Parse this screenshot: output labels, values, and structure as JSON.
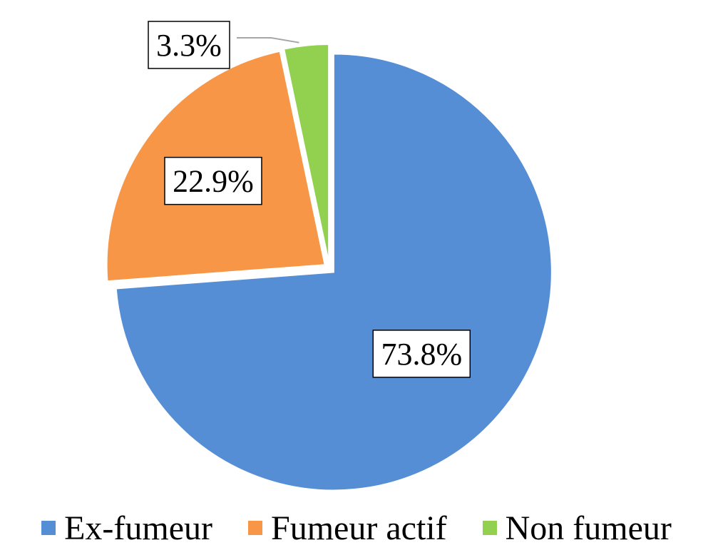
{
  "chart_data": {
    "type": "pie",
    "title": "",
    "categories": [
      "Ex-fumeur",
      "Fumeur actif",
      "Non fumeur"
    ],
    "values": [
      73.8,
      22.9,
      3.3
    ],
    "labels": [
      "73.8%",
      "22.9%",
      "3.3%"
    ],
    "colors": [
      "#558ED5",
      "#F79646",
      "#92D050"
    ],
    "legend": "bottom",
    "start_angle": "12 o'clock",
    "direction": "clockwise",
    "exploded": true
  }
}
